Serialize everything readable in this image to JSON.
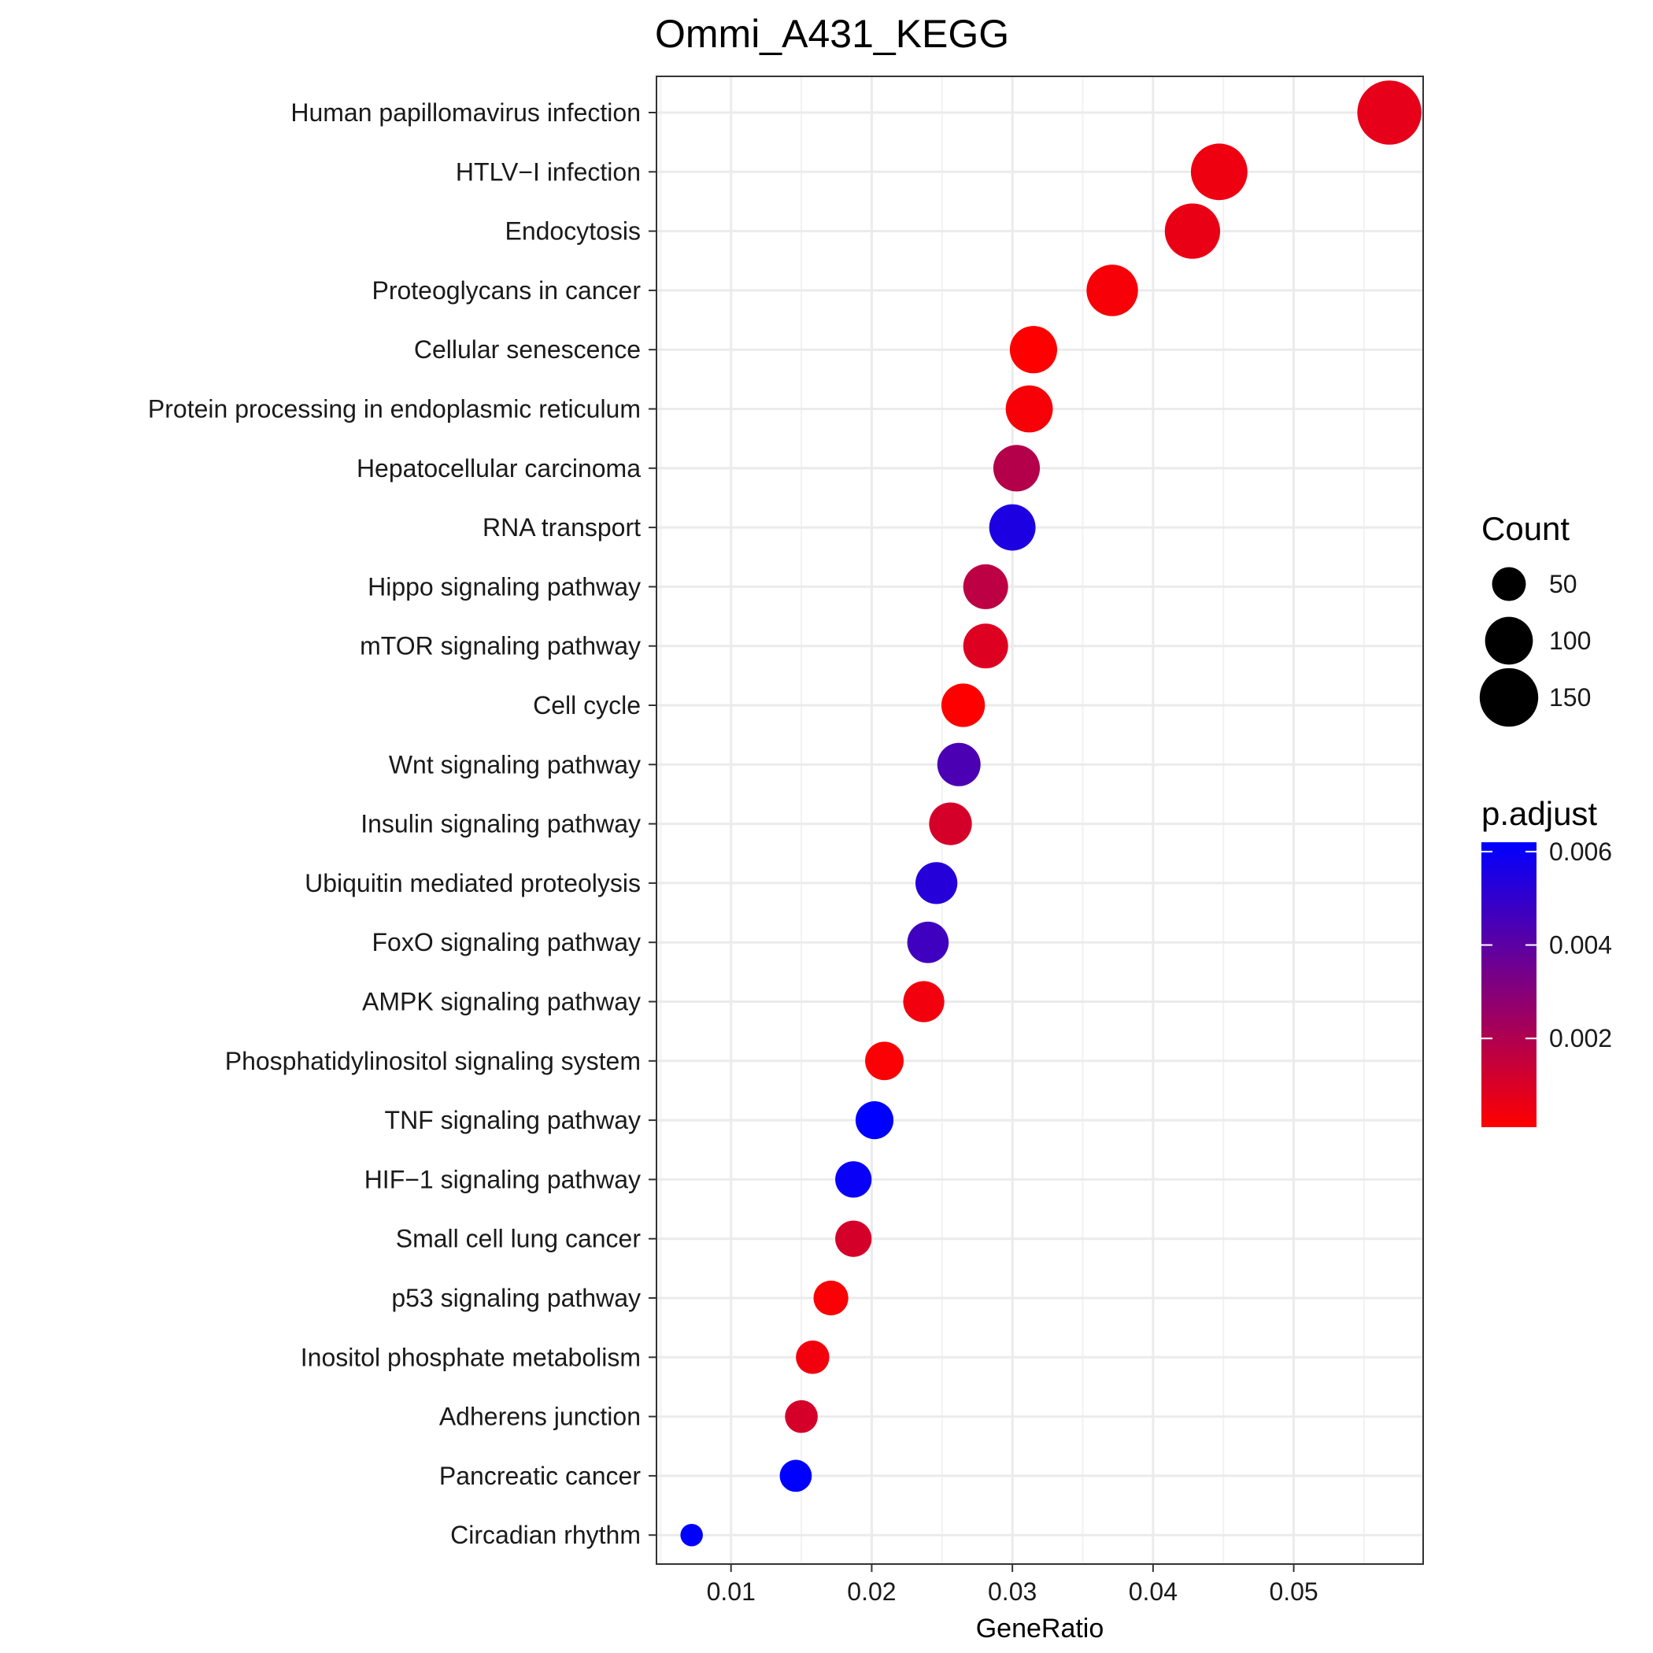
{
  "chart_data": {
    "type": "scatter",
    "title": "Ommi_A431_KEGG",
    "xlabel": "GeneRatio",
    "ylabel": "",
    "xlim": [
      0.0047,
      0.0592
    ],
    "xticks": [
      "0.01",
      "0.02",
      "0.03",
      "0.04",
      "0.05"
    ],
    "grid": true,
    "legend_position": "right",
    "points": [
      {
        "category": "Human papillomavirus infection",
        "x": 0.0568,
        "count": 180,
        "p_adjust": 0.0007
      },
      {
        "category": "HTLV−I infection",
        "x": 0.0447,
        "count": 140,
        "p_adjust": 0.0005
      },
      {
        "category": "Endocytosis",
        "x": 0.0428,
        "count": 134,
        "p_adjust": 0.0006
      },
      {
        "category": "Proteoglycans in cancer",
        "x": 0.0371,
        "count": 116,
        "p_adjust": 0.0003
      },
      {
        "category": "Cellular senescence",
        "x": 0.0315,
        "count": 98,
        "p_adjust": 0.0001
      },
      {
        "category": "Protein processing in endoplasmic reticulum",
        "x": 0.0312,
        "count": 97,
        "p_adjust": 0.0003
      },
      {
        "category": "Hepatocellular carcinoma",
        "x": 0.0303,
        "count": 95,
        "p_adjust": 0.0019
      },
      {
        "category": "RNA transport",
        "x": 0.03,
        "count": 94,
        "p_adjust": 0.0055
      },
      {
        "category": "Hippo signaling pathway",
        "x": 0.0281,
        "count": 88,
        "p_adjust": 0.0017
      },
      {
        "category": "mTOR signaling pathway",
        "x": 0.0281,
        "count": 88,
        "p_adjust": 0.0009
      },
      {
        "category": "Cell cycle",
        "x": 0.0265,
        "count": 83,
        "p_adjust": 0.0001
      },
      {
        "category": "Wnt signaling pathway",
        "x": 0.0262,
        "count": 82,
        "p_adjust": 0.0044
      },
      {
        "category": "Insulin signaling pathway",
        "x": 0.0256,
        "count": 80,
        "p_adjust": 0.0011
      },
      {
        "category": "Ubiquitin mediated proteolysis",
        "x": 0.0246,
        "count": 77,
        "p_adjust": 0.0053
      },
      {
        "category": "FoxO signaling pathway",
        "x": 0.024,
        "count": 75,
        "p_adjust": 0.0047
      },
      {
        "category": "AMPK signaling pathway",
        "x": 0.0237,
        "count": 74,
        "p_adjust": 0.0004
      },
      {
        "category": "Phosphatidylinositol signaling system",
        "x": 0.0209,
        "count": 65,
        "p_adjust": 0.0002
      },
      {
        "category": "TNF signaling pathway",
        "x": 0.0202,
        "count": 63,
        "p_adjust": 0.0062
      },
      {
        "category": "HIF−1 signaling pathway",
        "x": 0.0187,
        "count": 58,
        "p_adjust": 0.006
      },
      {
        "category": "Small cell lung cancer",
        "x": 0.0187,
        "count": 58,
        "p_adjust": 0.0011
      },
      {
        "category": "p53 signaling pathway",
        "x": 0.0171,
        "count": 53,
        "p_adjust": 0.0002
      },
      {
        "category": "Inositol phosphate metabolism",
        "x": 0.0158,
        "count": 49,
        "p_adjust": 0.0004
      },
      {
        "category": "Adherens junction",
        "x": 0.015,
        "count": 47,
        "p_adjust": 0.0011
      },
      {
        "category": "Pancreatic cancer",
        "x": 0.0146,
        "count": 45,
        "p_adjust": 0.0062
      },
      {
        "category": "Circadian rhythm",
        "x": 0.0072,
        "count": 22,
        "p_adjust": 0.0063
      }
    ],
    "size_legend": {
      "title": "Count",
      "labels": [
        "50",
        "100",
        "150"
      ],
      "values": [
        50,
        100,
        150
      ]
    },
    "color_legend": {
      "title": "p.adjust",
      "labels": [
        "0.006",
        "0.004",
        "0.002"
      ],
      "values": [
        0.006,
        0.004,
        0.002
      ],
      "range": [
        0.0001,
        0.0062
      ],
      "low_color": "#ff0000",
      "high_color": "#0000ff"
    }
  }
}
